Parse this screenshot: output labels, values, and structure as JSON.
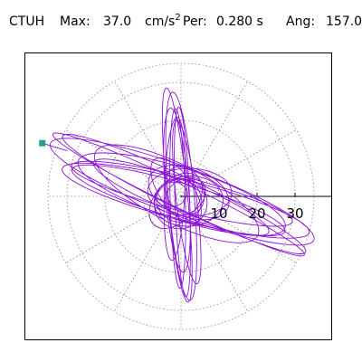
{
  "header": {
    "station": "CTUH",
    "max_label": "Max:",
    "max_value": "37.0",
    "max_unit": "cm/s",
    "max_unit_exp": "2",
    "per_label": "Per:",
    "per_value": "0.280 s",
    "ang_label": "Ang:",
    "ang_value": "157.0"
  },
  "chart_data": {
    "type": "scatter",
    "subtype": "polar-particle-motion",
    "title": "",
    "max_amplitude": 37.0,
    "period": 0.28,
    "angle": 157.0,
    "radial_ticks": [
      "10",
      "20",
      "30"
    ],
    "radial_tick_values": [
      10,
      20,
      30
    ],
    "rlim": [
      0,
      35
    ],
    "angular_grid_step_deg": 30,
    "grid": true,
    "trace_color": "#8b14d6",
    "marker_color": "#1fa38a",
    "grid_color": "#888888",
    "marker_point": {
      "x": -36.5,
      "y": 14.0
    }
  }
}
